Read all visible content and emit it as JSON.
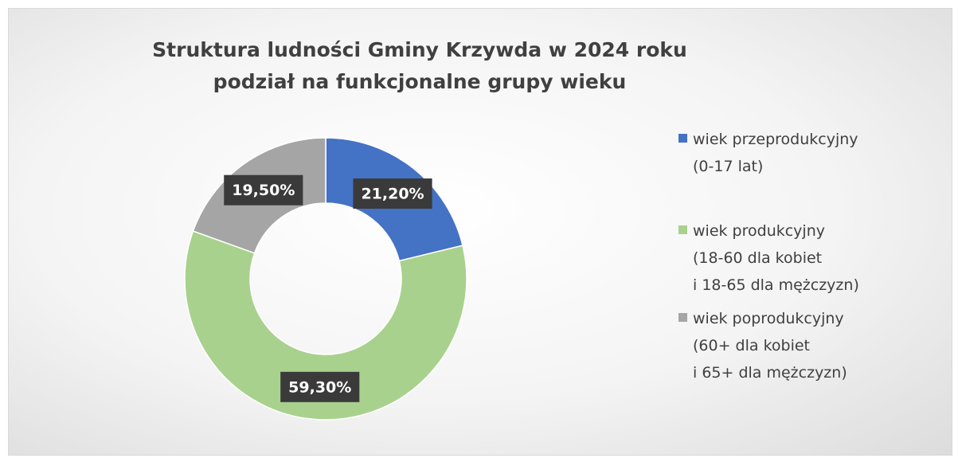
{
  "chart_data": {
    "type": "donut",
    "title": "Struktura ludności Gminy Krzywda w 2024 roku",
    "subtitle": "podział na funkcjonalne grupy wieku",
    "categories": [
      "wiek przeprodukcyjny\n(0-17 lat)",
      "wiek produkcyjny\n(18-60 dla kobiet\ni 18-65 dla mężczyzn)",
      "wiek poprodukcyjny\n(60+ dla kobiet\ni 65+ dla mężczyzn)"
    ],
    "values": [
      21.2,
      59.3,
      19.5
    ],
    "value_labels": [
      "21,20%",
      "59,30%",
      "19,50%"
    ],
    "colors": [
      "#4472c4",
      "#a9d18e",
      "#a5a5a5"
    ],
    "legend": "right"
  }
}
